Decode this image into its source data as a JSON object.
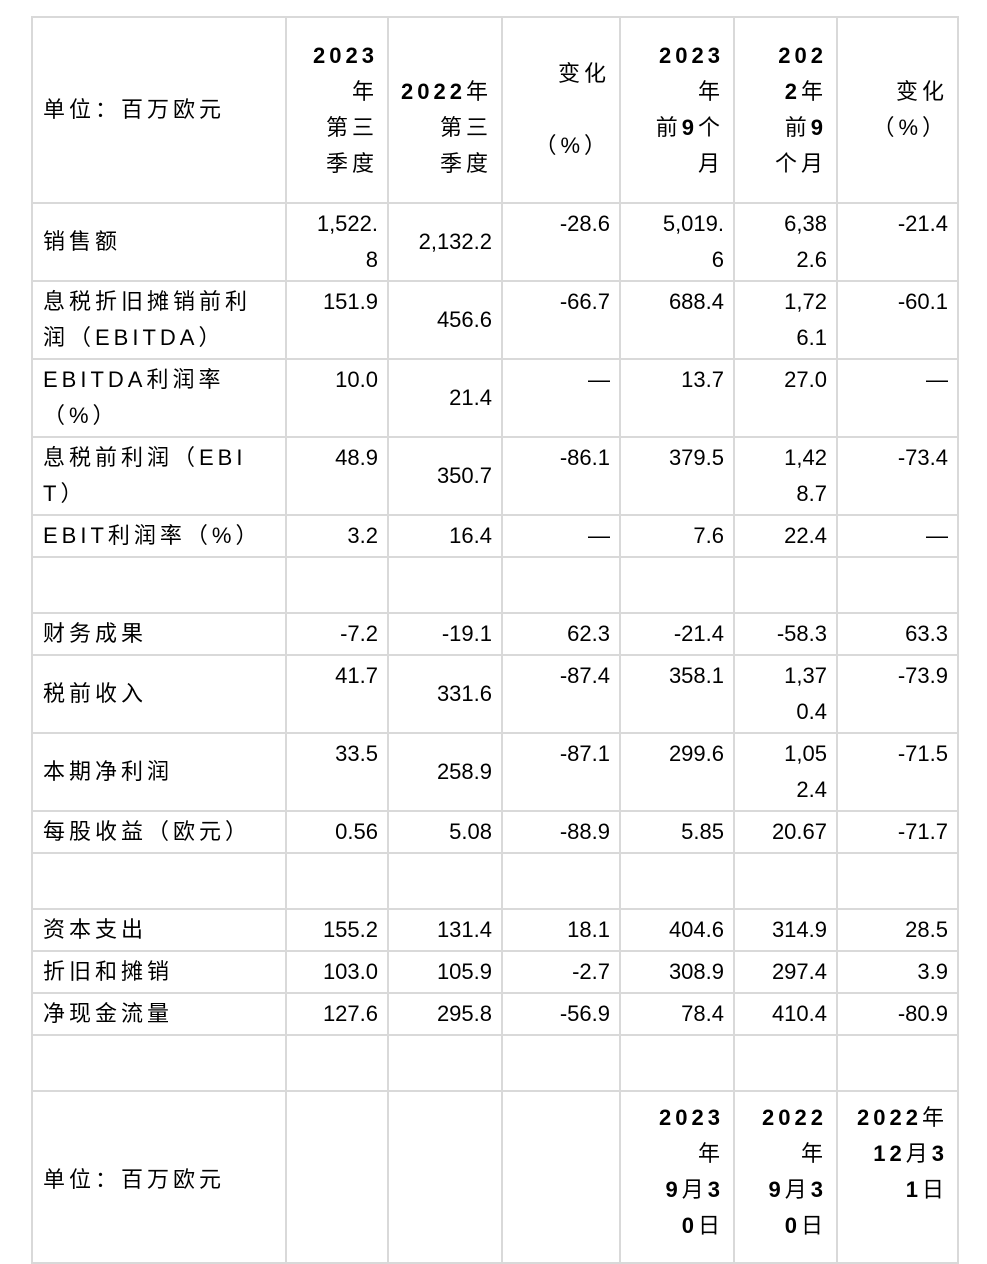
{
  "page": {
    "background_color": "#ffffff",
    "text_color": "#000000",
    "grid_border_color": "#d9d9d9"
  },
  "table": {
    "top_header": {
      "unit_label": "单位：百万欧元",
      "columns": [
        "2023\n年\n第三\n季度",
        "\n2022年\n第三\n季度",
        "变化\n\n（%）",
        "2023\n年\n前9个\n月",
        "202\n2年\n前9\n个月",
        "变化\n（%）"
      ]
    },
    "rows": [
      {
        "key": "sales",
        "label": "销售额",
        "values": [
          "1,522.\n8",
          "2,132.2",
          "-28.6",
          "5,019.\n6",
          "6,38\n2.6",
          "-21.4"
        ]
      },
      {
        "key": "ebitda",
        "label": "息税折旧摊销前利\n润（EBITDA）",
        "values": [
          "151.9",
          "456.6",
          "-66.7",
          "688.4",
          "1,72\n6.1",
          "-60.1"
        ]
      },
      {
        "key": "ebitda-margin",
        "label": "EBITDA利润率\n（%）",
        "values": [
          "10.0",
          "21.4",
          "—",
          "13.7",
          "27.0",
          "—"
        ]
      },
      {
        "key": "ebit",
        "label": "息税前利润（EBI\nT）",
        "values": [
          "48.9",
          "350.7",
          "-86.1",
          "379.5",
          "1,42\n8.7",
          "-73.4"
        ]
      },
      {
        "key": "ebit-margin",
        "label": "EBIT利润率（%）",
        "values": [
          "3.2",
          "16.4",
          "—",
          "7.6",
          "22.4",
          "—"
        ]
      },
      {
        "key": "spacer-1",
        "spacer": true
      },
      {
        "key": "financial-result",
        "label": "财务成果",
        "values": [
          "-7.2",
          "-19.1",
          "62.3",
          "-21.4",
          "-58.3",
          "63.3"
        ]
      },
      {
        "key": "pretax-income",
        "label": "税前收入",
        "values": [
          "41.7",
          "331.6",
          "-87.4",
          "358.1",
          "1,37\n0.4",
          "-73.9"
        ]
      },
      {
        "key": "net-income",
        "label": "本期净利润",
        "values": [
          "33.5",
          "258.9",
          "-87.1",
          "299.6",
          "1,05\n2.4",
          "-71.5"
        ]
      },
      {
        "key": "eps",
        "label": "每股收益（欧元）",
        "values": [
          "0.56",
          "5.08",
          "-88.9",
          "5.85",
          "20.67",
          "-71.7"
        ]
      },
      {
        "key": "spacer-2",
        "spacer": true
      },
      {
        "key": "capex",
        "label": "资本支出",
        "values": [
          "155.2",
          "131.4",
          "18.1",
          "404.6",
          "314.9",
          "28.5"
        ]
      },
      {
        "key": "depreciation-amortization",
        "label": "折旧和摊销",
        "values": [
          "103.0",
          "105.9",
          "-2.7",
          "308.9",
          "297.4",
          "3.9"
        ]
      },
      {
        "key": "net-cash-flow",
        "label": "净现金流量",
        "values": [
          "127.6",
          "295.8",
          "-56.9",
          "78.4",
          "410.4",
          "-80.9"
        ]
      },
      {
        "key": "spacer-3",
        "spacer": true
      }
    ],
    "bottom_header": {
      "unit_label": "单位：百万欧元",
      "columns": [
        "",
        "",
        "",
        "2023\n年\n9月3\n0日",
        "2022\n年\n9月3\n0日",
        "2022年\n12月3\n1日"
      ]
    }
  }
}
